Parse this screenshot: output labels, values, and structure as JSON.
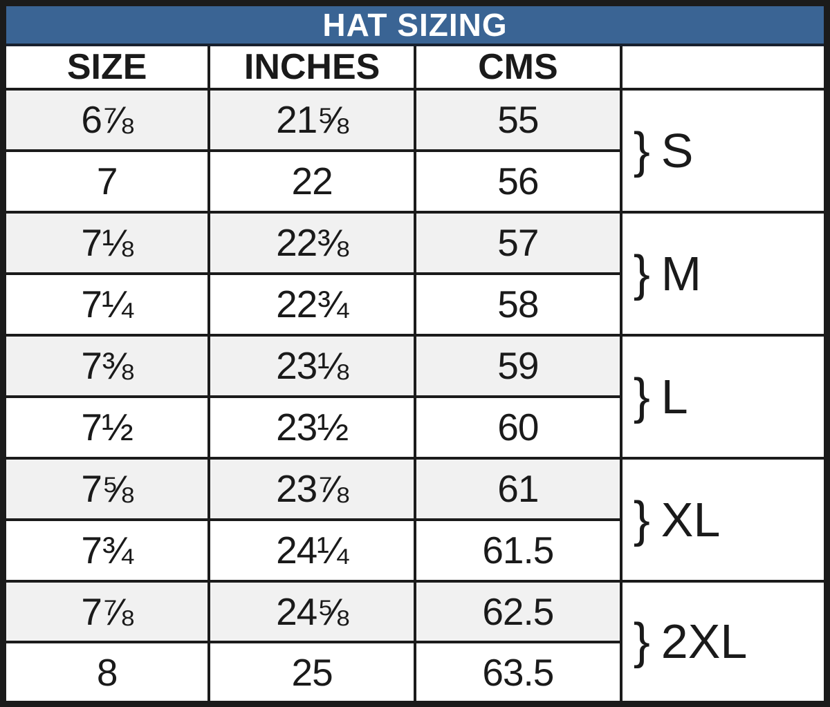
{
  "title": "HAT SIZING",
  "colors": {
    "title_bg": "#3a6494",
    "title_text": "#ffffff",
    "grid_border": "#1b1b1b",
    "row_alt_bg": "#f1f1f1",
    "row_bg": "#ffffff",
    "text": "#1a1a1a"
  },
  "table": {
    "headers": [
      "SIZE",
      "INCHES",
      "CMS"
    ],
    "group_header": "",
    "rows": [
      {
        "size": "6⅞",
        "inches": "21⅝",
        "cms": "55"
      },
      {
        "size": "7",
        "inches": "22",
        "cms": "56"
      },
      {
        "size": "7⅛",
        "inches": "22⅜",
        "cms": "57"
      },
      {
        "size": "7¼",
        "inches": "22¾",
        "cms": "58"
      },
      {
        "size": "7⅜",
        "inches": "23⅛",
        "cms": "59"
      },
      {
        "size": "7½",
        "inches": "23½",
        "cms": "60"
      },
      {
        "size": "7⅝",
        "inches": "23⅞",
        "cms": "61"
      },
      {
        "size": "7¾",
        "inches": "24¼",
        "cms": "61.5"
      },
      {
        "size": "7⅞",
        "inches": "24⅝",
        "cms": "62.5"
      },
      {
        "size": "8",
        "inches": "25",
        "cms": "63.5"
      }
    ],
    "groups": [
      {
        "brace": "}",
        "label": "S"
      },
      {
        "brace": "}",
        "label": "M"
      },
      {
        "brace": "}",
        "label": "L"
      },
      {
        "brace": "}",
        "label": "XL"
      },
      {
        "brace": "}",
        "label": "2XL"
      }
    ]
  },
  "chart_data": {
    "type": "table",
    "title": "HAT SIZING",
    "columns": [
      "SIZE",
      "INCHES",
      "CMS",
      ""
    ],
    "rows": [
      [
        "6⅞",
        "21⅝",
        "55",
        "S"
      ],
      [
        "7",
        "22",
        "56",
        "S"
      ],
      [
        "7⅛",
        "22⅜",
        "57",
        "M"
      ],
      [
        "7¼",
        "22¾",
        "58",
        "M"
      ],
      [
        "7⅜",
        "23⅛",
        "59",
        "L"
      ],
      [
        "7½",
        "23½",
        "60",
        "L"
      ],
      [
        "7⅝",
        "23⅞",
        "61",
        "XL"
      ],
      [
        "7¾",
        "24¼",
        "61.5",
        "XL"
      ],
      [
        "7⅞",
        "24⅝",
        "62.5",
        "2XL"
      ],
      [
        "8",
        "25",
        "63.5",
        "2XL"
      ]
    ]
  }
}
